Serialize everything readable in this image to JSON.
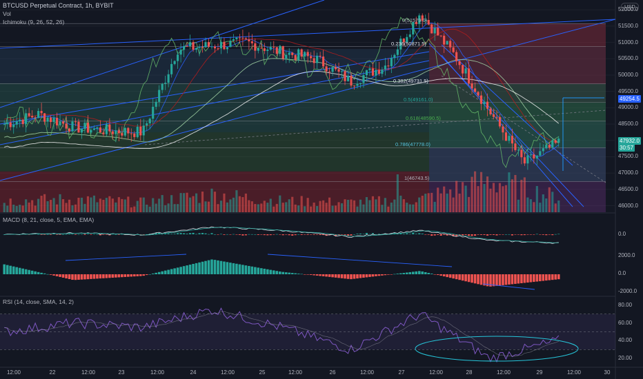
{
  "header": {
    "symbol_line": "BTCUSD Perpetual Contract, 1h, BYBIT",
    "vol_label": "Vol",
    "ichimoku_label": "Ichimoku (9, 26, 52, 26)",
    "macd1_label": "MACD (8, 21, close, 5, EMA, EMA)",
    "rsi_label": "RSI (14, close, SMA, 14, 2)",
    "currency": "USD"
  },
  "price_axis": {
    "ticks": [
      "52000.0",
      "51500.0",
      "51000.0",
      "50500.0",
      "50000.0",
      "49500.0",
      "49000.0",
      "48500.0",
      "48000.0",
      "47500.0",
      "47000.0",
      "46500.0",
      "46000.0"
    ],
    "tick_values": [
      52000,
      51500,
      51000,
      50500,
      50000,
      49500,
      49000,
      48500,
      48000,
      47500,
      47000,
      46500,
      46000
    ],
    "marker_price": "49254.5",
    "last_price": "47932.0",
    "countdown": "30:57"
  },
  "macd_axis": {
    "ticks": [
      "0.0"
    ]
  },
  "hist_axis": {
    "ticks": [
      "2000.0",
      "0.0",
      "-2000.0"
    ]
  },
  "rsi_axis": {
    "ticks": [
      "80.00",
      "60.00",
      "40.00",
      "20.00"
    ]
  },
  "time_axis": {
    "labels": [
      "12:00",
      "22",
      "12:00",
      "23",
      "12:00",
      "24",
      "12:00",
      "25",
      "12:00",
      "26",
      "12:00",
      "27",
      "12:00",
      "28",
      "12:00",
      "29",
      "12:00",
      "30"
    ]
  },
  "fib_levels": [
    {
      "label": "0(51579.0)",
      "color": "#b2b5be"
    },
    {
      "label": "0.236(50871.5)",
      "color": "#e0e3eb"
    },
    {
      "label": "0.382(49731.5)",
      "color": "#e0e3eb"
    },
    {
      "label": "0.5(49161.0)",
      "color": "#26a69a"
    },
    {
      "label": "0.618(48590.5)",
      "color": "#4caf50"
    },
    {
      "label": "0.786(47778.0)",
      "color": "#56c7e0"
    },
    {
      "label": "1(46743.5)",
      "color": "#b2b5be"
    }
  ],
  "colors": {
    "background": "#131722",
    "up": "#26a69a",
    "down": "#ef5350",
    "trend_line": "#2962ff",
    "rsi": "#7e57c2"
  },
  "chart_data": [
    {
      "type": "line",
      "title": "BTCUSD Perpetual Contract, 1h, BYBIT",
      "ylim": [
        45800,
        52300
      ],
      "series": [
        {
          "name": "BTCUSD",
          "x": [
            "21 12:00",
            "22",
            "22 12:00",
            "23",
            "23 12:00",
            "24",
            "24 12:00",
            "25",
            "25 12:00",
            "26",
            "26 12:00",
            "27",
            "27 12:00",
            "28",
            "28 12:00",
            "29",
            "29 06:00"
          ],
          "values": [
            48500,
            48800,
            48400,
            48300,
            48250,
            50800,
            50900,
            51000,
            50700,
            50500,
            49800,
            50300,
            51900,
            50600,
            48900,
            47300,
            47932
          ]
        }
      ]
    },
    {
      "type": "bar",
      "title": "Vol",
      "categories": [
        "21",
        "22",
        "23",
        "24",
        "25",
        "26",
        "27",
        "28",
        "29"
      ],
      "values": [
        0.35,
        0.4,
        0.3,
        0.55,
        0.35,
        0.3,
        0.4,
        1.0,
        0.45
      ]
    },
    {
      "type": "line",
      "title": "MACD (8, 21, close, 5, EMA, EMA)",
      "series": [
        {
          "name": "MACD",
          "x": [
            "21",
            "22",
            "23",
            "24",
            "25",
            "26",
            "27",
            "28",
            "29"
          ],
          "values": [
            0,
            100,
            -50,
            600,
            300,
            -200,
            300,
            -500,
            -700
          ]
        }
      ]
    },
    {
      "type": "bar",
      "ylim": [
        -2200,
        2200
      ],
      "categories": [
        "21",
        "22",
        "23",
        "24",
        "25",
        "26",
        "27",
        "28",
        "29"
      ],
      "values": [
        1200,
        -700,
        -200,
        1800,
        300,
        -600,
        400,
        -1500,
        -600
      ]
    },
    {
      "type": "line",
      "title": "RSI (14, close, SMA, 14, 2)",
      "ylim": [
        10,
        90
      ],
      "series": [
        {
          "name": "RSI",
          "x": [
            "21",
            "22",
            "23",
            "24",
            "25",
            "26",
            "27",
            "28",
            "29"
          ],
          "values": [
            50,
            60,
            55,
            75,
            55,
            30,
            70,
            20,
            40
          ]
        }
      ]
    }
  ]
}
